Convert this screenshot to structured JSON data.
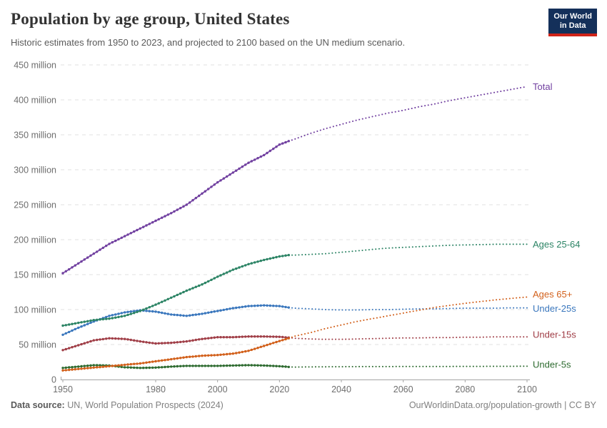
{
  "header": {
    "title": "Population by age group, United States",
    "subtitle": "Historic estimates from 1950 to 2023, and projected to 2100 based on the UN medium scenario.",
    "logo": {
      "line1": "Our World",
      "line2": "in Data"
    }
  },
  "footer": {
    "datasource_label": "Data source:",
    "datasource": " UN, World Population Prospects (2024)",
    "link": "OurWorldinData.org/population-growth | CC BY"
  },
  "colors": {
    "grid": "#e2e2e2",
    "axis": "#a5a5a5",
    "tick_text": "#6e6e6e",
    "logo_bg": "#14305a",
    "logo_red": "#cf2318"
  },
  "chart_data": {
    "type": "line",
    "title": "Population by age group, United States",
    "xlabel": "",
    "ylabel": "",
    "x_range": [
      1950,
      2100
    ],
    "ylim": [
      0,
      450
    ],
    "y_tick_suffix": " million",
    "x_ticks": [
      1950,
      1980,
      2000,
      2020,
      2040,
      2060,
      2080,
      2100
    ],
    "y_ticks": [
      0,
      50,
      100,
      150,
      200,
      250,
      300,
      350,
      400,
      450
    ],
    "grid": true,
    "legend_position": "right-end-labels",
    "historic_until": 2023,
    "projection_style": "dotted",
    "series": [
      {
        "name": "Total",
        "color": "#7140a0",
        "points": [
          [
            1950,
            152
          ],
          [
            1955,
            166
          ],
          [
            1960,
            180
          ],
          [
            1965,
            194
          ],
          [
            1970,
            205
          ],
          [
            1975,
            216
          ],
          [
            1980,
            227
          ],
          [
            1985,
            238
          ],
          [
            1990,
            250
          ],
          [
            1995,
            266
          ],
          [
            2000,
            282
          ],
          [
            2005,
            296
          ],
          [
            2010,
            310
          ],
          [
            2015,
            321
          ],
          [
            2020,
            336
          ],
          [
            2023,
            341
          ],
          [
            2025,
            344
          ],
          [
            2030,
            352
          ],
          [
            2035,
            359
          ],
          [
            2040,
            365
          ],
          [
            2045,
            371
          ],
          [
            2050,
            376
          ],
          [
            2055,
            381
          ],
          [
            2060,
            385
          ],
          [
            2065,
            390
          ],
          [
            2070,
            394
          ],
          [
            2075,
            399
          ],
          [
            2080,
            403
          ],
          [
            2085,
            407
          ],
          [
            2090,
            411
          ],
          [
            2095,
            415
          ],
          [
            2100,
            419
          ]
        ]
      },
      {
        "name": "Ages 25-64",
        "color": "#2c8465",
        "points": [
          [
            1950,
            77
          ],
          [
            1955,
            81
          ],
          [
            1960,
            85
          ],
          [
            1965,
            87
          ],
          [
            1970,
            91
          ],
          [
            1975,
            98
          ],
          [
            1980,
            107
          ],
          [
            1985,
            117
          ],
          [
            1990,
            127
          ],
          [
            1995,
            136
          ],
          [
            2000,
            147
          ],
          [
            2005,
            157
          ],
          [
            2010,
            165
          ],
          [
            2015,
            171
          ],
          [
            2020,
            176
          ],
          [
            2023,
            178
          ],
          [
            2025,
            178
          ],
          [
            2030,
            179
          ],
          [
            2035,
            180
          ],
          [
            2040,
            182
          ],
          [
            2045,
            184
          ],
          [
            2050,
            186
          ],
          [
            2055,
            188
          ],
          [
            2060,
            189
          ],
          [
            2065,
            190
          ],
          [
            2070,
            191
          ],
          [
            2075,
            192
          ],
          [
            2080,
            192.5
          ],
          [
            2085,
            193
          ],
          [
            2090,
            193.5
          ],
          [
            2095,
            193.5
          ],
          [
            2100,
            193.5
          ]
        ]
      },
      {
        "name": "Ages 65+",
        "color": "#d2601b",
        "points": [
          [
            1950,
            13
          ],
          [
            1955,
            15
          ],
          [
            1960,
            17
          ],
          [
            1965,
            19
          ],
          [
            1970,
            21
          ],
          [
            1975,
            23
          ],
          [
            1980,
            26
          ],
          [
            1985,
            29
          ],
          [
            1990,
            32
          ],
          [
            1995,
            34
          ],
          [
            2000,
            35
          ],
          [
            2005,
            37
          ],
          [
            2010,
            41
          ],
          [
            2015,
            48
          ],
          [
            2020,
            55
          ],
          [
            2023,
            59
          ],
          [
            2025,
            62
          ],
          [
            2030,
            67
          ],
          [
            2035,
            73
          ],
          [
            2040,
            78
          ],
          [
            2045,
            83
          ],
          [
            2050,
            87
          ],
          [
            2055,
            91
          ],
          [
            2060,
            95
          ],
          [
            2065,
            99
          ],
          [
            2070,
            103
          ],
          [
            2075,
            106
          ],
          [
            2080,
            109
          ],
          [
            2085,
            111.5
          ],
          [
            2090,
            114
          ],
          [
            2095,
            116
          ],
          [
            2100,
            118
          ]
        ]
      },
      {
        "name": "Under-25s",
        "color": "#3a77bd",
        "points": [
          [
            1950,
            64
          ],
          [
            1955,
            74
          ],
          [
            1960,
            83
          ],
          [
            1965,
            91
          ],
          [
            1970,
            96
          ],
          [
            1975,
            99
          ],
          [
            1980,
            97
          ],
          [
            1985,
            93
          ],
          [
            1990,
            91
          ],
          [
            1995,
            94
          ],
          [
            2000,
            98
          ],
          [
            2005,
            102
          ],
          [
            2010,
            105
          ],
          [
            2015,
            106
          ],
          [
            2020,
            105
          ],
          [
            2023,
            103
          ],
          [
            2025,
            102
          ],
          [
            2030,
            101
          ],
          [
            2035,
            100
          ],
          [
            2040,
            99.5
          ],
          [
            2045,
            99.5
          ],
          [
            2050,
            100
          ],
          [
            2055,
            100
          ],
          [
            2060,
            100.5
          ],
          [
            2065,
            101
          ],
          [
            2070,
            101
          ],
          [
            2075,
            101.5
          ],
          [
            2080,
            102
          ],
          [
            2085,
            102
          ],
          [
            2090,
            102
          ],
          [
            2095,
            102.5
          ],
          [
            2100,
            102.5
          ]
        ]
      },
      {
        "name": "Under-15s",
        "color": "#a03e47",
        "points": [
          [
            1950,
            42
          ],
          [
            1955,
            49
          ],
          [
            1960,
            56
          ],
          [
            1965,
            59
          ],
          [
            1970,
            58
          ],
          [
            1975,
            54.5
          ],
          [
            1980,
            51.5
          ],
          [
            1985,
            52.5
          ],
          [
            1990,
            54.5
          ],
          [
            1995,
            58
          ],
          [
            2000,
            60.5
          ],
          [
            2005,
            60.5
          ],
          [
            2010,
            61.5
          ],
          [
            2015,
            61.5
          ],
          [
            2020,
            61
          ],
          [
            2023,
            60
          ],
          [
            2025,
            59
          ],
          [
            2030,
            58
          ],
          [
            2035,
            57.5
          ],
          [
            2040,
            57.5
          ],
          [
            2045,
            58
          ],
          [
            2050,
            58.5
          ],
          [
            2055,
            59
          ],
          [
            2060,
            59.5
          ],
          [
            2065,
            59.5
          ],
          [
            2070,
            60
          ],
          [
            2075,
            60
          ],
          [
            2080,
            60.5
          ],
          [
            2085,
            60.5
          ],
          [
            2090,
            61
          ],
          [
            2095,
            61
          ],
          [
            2100,
            61
          ]
        ]
      },
      {
        "name": "Under-5s",
        "color": "#2e6b30",
        "points": [
          [
            1950,
            16.5
          ],
          [
            1955,
            18.5
          ],
          [
            1960,
            20.5
          ],
          [
            1965,
            20
          ],
          [
            1970,
            17.5
          ],
          [
            1975,
            16.5
          ],
          [
            1980,
            17
          ],
          [
            1985,
            18.5
          ],
          [
            1990,
            19.5
          ],
          [
            1995,
            19.5
          ],
          [
            2000,
            19.5
          ],
          [
            2005,
            20
          ],
          [
            2010,
            20.5
          ],
          [
            2015,
            20
          ],
          [
            2020,
            19
          ],
          [
            2023,
            18
          ],
          [
            2025,
            17.8
          ],
          [
            2030,
            18
          ],
          [
            2035,
            18.2
          ],
          [
            2040,
            18.3
          ],
          [
            2045,
            18.4
          ],
          [
            2050,
            18.5
          ],
          [
            2055,
            18.5
          ],
          [
            2060,
            18.6
          ],
          [
            2065,
            18.6
          ],
          [
            2070,
            18.7
          ],
          [
            2075,
            18.7
          ],
          [
            2080,
            18.8
          ],
          [
            2085,
            18.8
          ],
          [
            2090,
            18.9
          ],
          [
            2095,
            18.9
          ],
          [
            2100,
            19
          ]
        ]
      }
    ]
  }
}
